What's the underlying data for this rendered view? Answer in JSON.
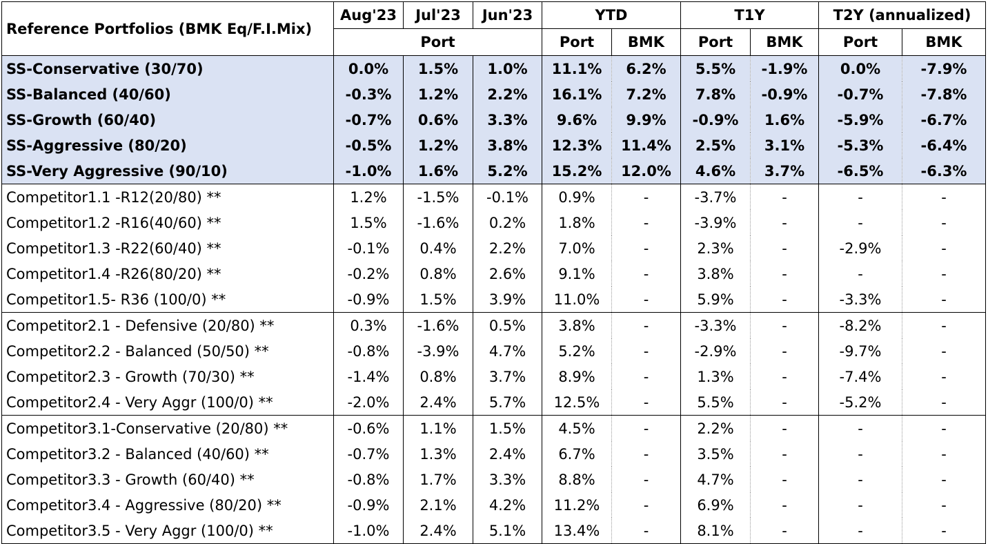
{
  "header": {
    "title": "Reference Portfolios (BMK Eq/F.I.Mix)",
    "aug": "Aug'23",
    "jul": "Jul'23",
    "jun": "Jun'23",
    "ytd": "YTD",
    "t1y": "T1Y",
    "t2y": "T2Y (annualized)",
    "port_span": "Port",
    "ytd_port": "Port",
    "ytd_bmk": "BMK",
    "t1y_port": "Port",
    "t1y_bmk": "BMK",
    "t2y_port": "Port",
    "t2y_bmk": "BMK"
  },
  "ss_rows": [
    {
      "name": "SS-Conservative (30/70)",
      "aug": "0.0%",
      "jul": "1.5%",
      "jun": "1.0%",
      "ytd_port": "11.1%",
      "ytd_bmk": "6.2%",
      "t1y_port": "5.5%",
      "t1y_bmk": "-1.9%",
      "t2y_port": "0.0%",
      "t2y_bmk": "-7.9%"
    },
    {
      "name": "SS-Balanced (40/60)",
      "aug": "-0.3%",
      "jul": "1.2%",
      "jun": "2.2%",
      "ytd_port": "16.1%",
      "ytd_bmk": "7.2%",
      "t1y_port": "7.8%",
      "t1y_bmk": "-0.9%",
      "t2y_port": "-0.7%",
      "t2y_bmk": "-7.8%"
    },
    {
      "name": "SS-Growth (60/40)",
      "aug": "-0.7%",
      "jul": "0.6%",
      "jun": "3.3%",
      "ytd_port": "9.6%",
      "ytd_bmk": "9.9%",
      "t1y_port": "-0.9%",
      "t1y_bmk": "1.6%",
      "t2y_port": "-5.9%",
      "t2y_bmk": "-6.7%"
    },
    {
      "name": "SS-Aggressive (80/20)",
      "aug": "-0.5%",
      "jul": "1.2%",
      "jun": "3.8%",
      "ytd_port": "12.3%",
      "ytd_bmk": "11.4%",
      "t1y_port": "2.5%",
      "t1y_bmk": "3.1%",
      "t2y_port": "-5.3%",
      "t2y_bmk": "-6.4%"
    },
    {
      "name": "SS-Very Aggressive (90/10)",
      "aug": "-1.0%",
      "jul": "1.6%",
      "jun": "5.2%",
      "ytd_port": "15.2%",
      "ytd_bmk": "12.0%",
      "t1y_port": "4.6%",
      "t1y_bmk": "3.7%",
      "t2y_port": "-6.5%",
      "t2y_bmk": "-6.3%"
    }
  ],
  "competitor1_rows": [
    {
      "name": "Competitor1.1 -R12(20/80) **",
      "aug": "1.2%",
      "jul": "-1.5%",
      "jun": "-0.1%",
      "ytd_port": "0.9%",
      "ytd_bmk": "-",
      "t1y_port": "-3.7%",
      "t1y_bmk": "-",
      "t2y_port": "-",
      "t2y_bmk": "-"
    },
    {
      "name": "Competitor1.2 -R16(40/60) **",
      "aug": "1.5%",
      "jul": "-1.6%",
      "jun": "0.2%",
      "ytd_port": "1.8%",
      "ytd_bmk": "-",
      "t1y_port": "-3.9%",
      "t1y_bmk": "-",
      "t2y_port": "-",
      "t2y_bmk": "-"
    },
    {
      "name": "Competitor1.3 -R22(60/40) **",
      "aug": "-0.1%",
      "jul": "0.4%",
      "jun": "2.2%",
      "ytd_port": "7.0%",
      "ytd_bmk": "-",
      "t1y_port": "2.3%",
      "t1y_bmk": "-",
      "t2y_port": "-2.9%",
      "t2y_bmk": "-"
    },
    {
      "name": "Competitor1.4 -R26(80/20) **",
      "aug": "-0.2%",
      "jul": "0.8%",
      "jun": "2.6%",
      "ytd_port": "9.1%",
      "ytd_bmk": "-",
      "t1y_port": "3.8%",
      "t1y_bmk": "-",
      "t2y_port": "-",
      "t2y_bmk": "-"
    },
    {
      "name": "Competitor1.5- R36 (100/0) **",
      "aug": "-0.9%",
      "jul": "1.5%",
      "jun": "3.9%",
      "ytd_port": "11.0%",
      "ytd_bmk": "-",
      "t1y_port": "5.9%",
      "t1y_bmk": "-",
      "t2y_port": "-3.3%",
      "t2y_bmk": "-"
    }
  ],
  "competitor2_rows": [
    {
      "name": "Competitor2.1  - Defensive  (20/80) **",
      "aug": "0.3%",
      "jul": "-1.6%",
      "jun": "0.5%",
      "ytd_port": "3.8%",
      "ytd_bmk": "-",
      "t1y_port": "-3.3%",
      "t1y_bmk": "-",
      "t2y_port": "-8.2%",
      "t2y_bmk": "-"
    },
    {
      "name": "Competitor2.2  - Balanced (50/50) **",
      "aug": "-0.8%",
      "jul": "-3.9%",
      "jun": "4.7%",
      "ytd_port": "5.2%",
      "ytd_bmk": "-",
      "t1y_port": "-2.9%",
      "t1y_bmk": "-",
      "t2y_port": "-9.7%",
      "t2y_bmk": "-"
    },
    {
      "name": "Competitor2.3  - Growth  (70/30) **",
      "aug": "-1.4%",
      "jul": "0.8%",
      "jun": "3.7%",
      "ytd_port": "8.9%",
      "ytd_bmk": "-",
      "t1y_port": "1.3%",
      "t1y_bmk": "-",
      "t2y_port": "-7.4%",
      "t2y_bmk": "-"
    },
    {
      "name": "Competitor2.4  - Very Aggr  (100/0) **",
      "aug": "-2.0%",
      "jul": "2.4%",
      "jun": "5.7%",
      "ytd_port": "12.5%",
      "ytd_bmk": "-",
      "t1y_port": "5.5%",
      "t1y_bmk": "-",
      "t2y_port": "-5.2%",
      "t2y_bmk": "-"
    }
  ],
  "competitor3_rows": [
    {
      "name": "Competitor3.1-Conservative (20/80) **",
      "aug": "-0.6%",
      "jul": "1.1%",
      "jun": "1.5%",
      "ytd_port": "4.5%",
      "ytd_bmk": "-",
      "t1y_port": "2.2%",
      "t1y_bmk": "-",
      "t2y_port": "-",
      "t2y_bmk": "-"
    },
    {
      "name": "Competitor3.2 - Balanced  (40/60) **",
      "aug": "-0.7%",
      "jul": "1.3%",
      "jun": "2.4%",
      "ytd_port": "6.7%",
      "ytd_bmk": "-",
      "t1y_port": "3.5%",
      "t1y_bmk": "-",
      "t2y_port": "-",
      "t2y_bmk": "-"
    },
    {
      "name": "Competitor3.3 - Growth  (60/40) **",
      "aug": "-0.8%",
      "jul": "1.7%",
      "jun": "3.3%",
      "ytd_port": "8.8%",
      "ytd_bmk": "-",
      "t1y_port": "4.7%",
      "t1y_bmk": "-",
      "t2y_port": "-",
      "t2y_bmk": "-"
    },
    {
      "name": "Competitor3.4 - Aggressive  (80/20) **",
      "aug": "-0.9%",
      "jul": "2.1%",
      "jun": "4.2%",
      "ytd_port": "11.2%",
      "ytd_bmk": "-",
      "t1y_port": "6.9%",
      "t1y_bmk": "-",
      "t2y_port": "-",
      "t2y_bmk": "-"
    },
    {
      "name": "Competitor3.5  - Very Aggr (100/0) **",
      "aug": "-1.0%",
      "jul": "2.4%",
      "jun": "5.1%",
      "ytd_port": "13.4%",
      "ytd_bmk": "-",
      "t1y_port": "8.1%",
      "t1y_bmk": "-",
      "t2y_port": "-",
      "t2y_bmk": "-"
    }
  ]
}
